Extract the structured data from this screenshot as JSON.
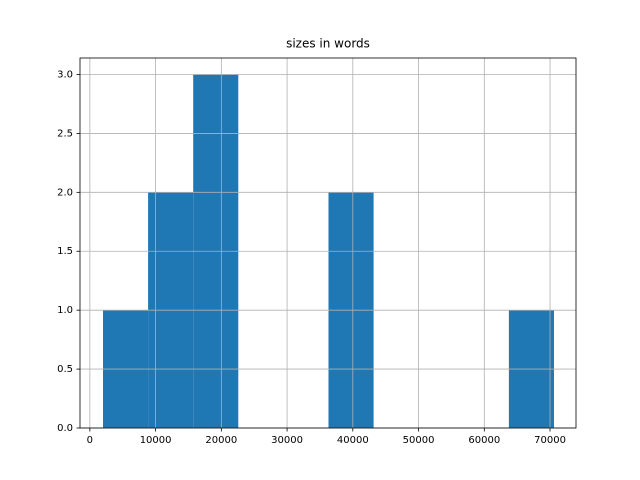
{
  "chart_data": {
    "type": "histogram",
    "title": "sizes in words",
    "bins": [
      2000,
      8860,
      15720,
      22580,
      29440,
      36300,
      43160,
      50020,
      56880,
      63740,
      70600
    ],
    "values": [
      1,
      2,
      3,
      0,
      0,
      2,
      0,
      0,
      0,
      1
    ],
    "color": "#1f77b4",
    "xlim": [
      -1500,
      73950
    ],
    "xticks": [
      0,
      10000,
      20000,
      30000,
      40000,
      50000,
      60000,
      70000
    ],
    "ylim": [
      0,
      3.14
    ],
    "yticks": [
      {
        "value": 0,
        "label": "0.0"
      },
      0.5,
      {
        "value": 1,
        "label": "1.0"
      },
      1.5,
      {
        "value": 2,
        "label": "2.0"
      },
      2.5,
      {
        "value": 3,
        "label": "3.0"
      }
    ],
    "grid": true
  }
}
